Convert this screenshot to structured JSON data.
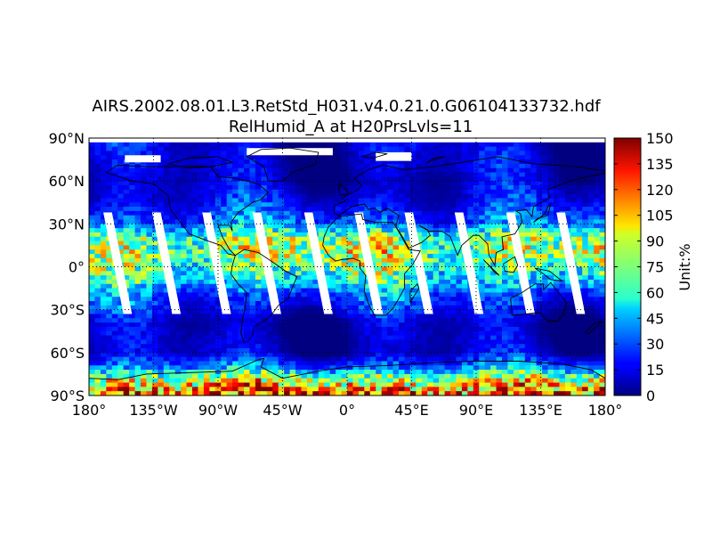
{
  "title_line1": "AIRS.2002.08.01.L3.RetStd_H031.v4.0.21.0.G06104133732.hdf",
  "title_line2": "RelHumid_A at H20PrsLvls=11",
  "colorbar": {
    "label": "Unit:%",
    "min": 0,
    "max": 150,
    "tick_labels": [
      "150",
      "135",
      "120",
      "105",
      "90",
      "75",
      "60",
      "45",
      "30",
      "15",
      "0"
    ],
    "colormap": "jet"
  },
  "chart_data": {
    "type": "heatmap",
    "variable": "RelHumid_A",
    "unit": "%",
    "projection": "cylindrical",
    "lon_range": [
      -180,
      180
    ],
    "lat_range": [
      -90,
      90
    ],
    "x_tick_labels": [
      "180°",
      "135°W",
      "90°W",
      "45°W",
      "0°",
      "45°E",
      "90°E",
      "135°E",
      "180°"
    ],
    "y_tick_labels": [
      "90°N",
      "60°N",
      "30°N",
      "0°",
      "30°S",
      "60°S",
      "90°S"
    ],
    "x_tick_values": [
      -180,
      -135,
      -90,
      -45,
      0,
      45,
      90,
      135,
      180
    ],
    "y_tick_values": [
      90,
      60,
      30,
      0,
      -30,
      -60,
      -90
    ],
    "grid": true,
    "value_range": [
      0,
      150
    ],
    "missing_data": "orbit swath gaps shown in white",
    "zonal_pattern": [
      {
        "lat": 80,
        "value": 12
      },
      {
        "lat": 60,
        "value": 10
      },
      {
        "lat": 45,
        "value": 18
      },
      {
        "lat": 30,
        "value": 35
      },
      {
        "lat": 20,
        "value": 75
      },
      {
        "lat": 10,
        "value": 80
      },
      {
        "lat": 0,
        "value": 70
      },
      {
        "lat": -10,
        "value": 55
      },
      {
        "lat": -20,
        "value": 30
      },
      {
        "lat": -40,
        "value": 8
      },
      {
        "lat": -60,
        "value": 10
      },
      {
        "lat": -70,
        "value": 35
      },
      {
        "lat": -80,
        "value": 90
      },
      {
        "lat": -88,
        "value": 120
      }
    ]
  }
}
